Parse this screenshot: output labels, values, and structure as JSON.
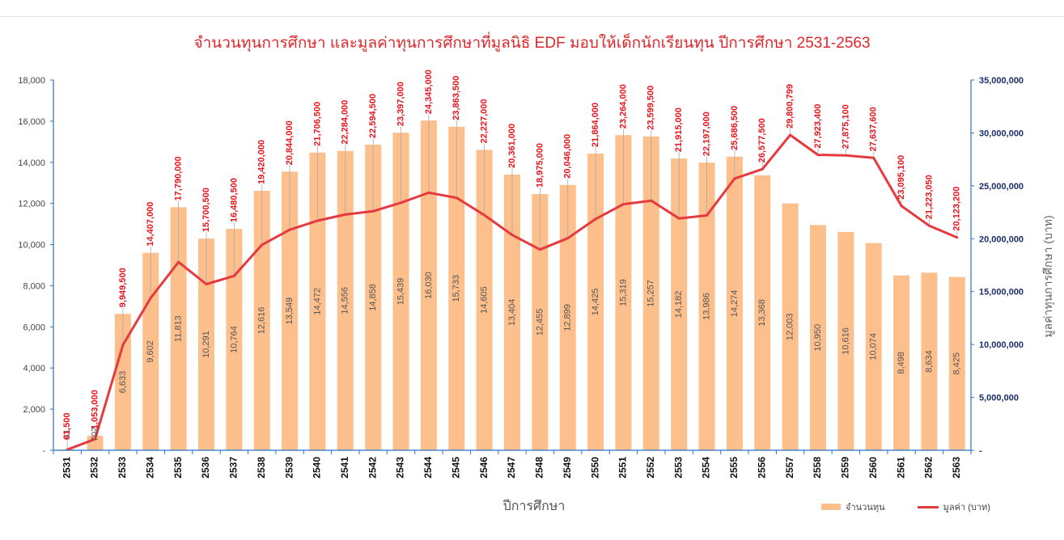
{
  "chart_data": {
    "type": "bar",
    "title": "จำนวนทุนการศึกษา และมูลค่าทุนการศึกษาที่มูลนิธิ EDF มอบให้เด็กนักเรียนทุน ปีการศึกษา 2531-2563",
    "xlabel": "ปีการศึกษา",
    "ylabel": "",
    "y2label": "มูลค่าทุนการศึกษา (บาท)",
    "ylim": [
      0,
      18000
    ],
    "y2lim": [
      0,
      35000000
    ],
    "y_ticks": [
      "-",
      "2,000",
      "4,000",
      "6,000",
      "8,000",
      "10,000",
      "12,000",
      "14,000",
      "16,000",
      "18,000"
    ],
    "y2_ticks": [
      "-",
      "5,000,000",
      "10,000,000",
      "15,000,000",
      "20,000,000",
      "25,000,000",
      "30,000,000",
      "35,000,000"
    ],
    "legend_position": "bottom-right",
    "grid": false,
    "categories": [
      "2531",
      "2532",
      "2533",
      "2534",
      "2535",
      "2536",
      "2537",
      "2538",
      "2539",
      "2540",
      "2541",
      "2542",
      "2543",
      "2544",
      "2545",
      "2546",
      "2547",
      "2548",
      "2549",
      "2550",
      "2551",
      "2552",
      "2553",
      "2554",
      "2555",
      "2556",
      "2557",
      "2558",
      "2559",
      "2560",
      "2561",
      "2562",
      "2563"
    ],
    "series": [
      {
        "name": "จำนวนทุน",
        "type": "bar",
        "axis": "left",
        "color": "#fdbf8c",
        "values": [
          41,
          702,
          6633,
          9602,
          11813,
          10291,
          10764,
          12616,
          13549,
          14472,
          14556,
          14858,
          15439,
          16030,
          15733,
          14605,
          13404,
          12455,
          12899,
          14425,
          15319,
          15257,
          14182,
          13986,
          14274,
          13368,
          12003,
          10950,
          10616,
          10074,
          8498,
          8634,
          8425
        ],
        "labels": [
          "41",
          "702",
          "6,633",
          "9,602",
          "11,813",
          "10,291",
          "10,764",
          "12,616",
          "13,549",
          "14,472",
          "14,556",
          "14,858",
          "15,439",
          "16,030",
          "15,733",
          "14,605",
          "13,404",
          "12,455",
          "12,899",
          "14,425",
          "15,319",
          "15,257",
          "14,182",
          "13,986",
          "14,274",
          "13,368",
          "12,003",
          "10,950",
          "10,616",
          "10,074",
          "8,498",
          "8,634",
          "8,425"
        ]
      },
      {
        "name": "มูลค่า (บาท)",
        "type": "line",
        "axis": "right",
        "color": "#e53a40",
        "values": [
          61500,
          1053000,
          9949500,
          14407000,
          17790000,
          15700500,
          16480500,
          19420000,
          20844000,
          21706500,
          22284000,
          22594500,
          23397000,
          24345000,
          23863500,
          22227000,
          20361000,
          18975000,
          20046000,
          21864000,
          23264000,
          23599500,
          21915000,
          22197000,
          25686500,
          26577500,
          29800799,
          27923400,
          27875100,
          27637600,
          23095100,
          21223050,
          20123200
        ],
        "labels": [
          "61,500",
          "1,053,000",
          "9,949,500",
          "14,407,000",
          "17,790,000",
          "15,700,500",
          "16,480,500",
          "19,420,000",
          "20,844,000",
          "21,706,500",
          "22,284,000",
          "22,594,500",
          "23,397,000",
          "24,345,000",
          "23,863,500",
          "22,227,000",
          "20,361,000",
          "18,975,000",
          "20,046,000",
          "21,864,000",
          "23,264,000",
          "23,599,500",
          "21,915,000",
          "22,197,000",
          "25,686,500",
          "26,577,500",
          "29,800,799",
          "27,923,400",
          "27,875,100",
          "27,637,600",
          "23,095,100",
          "21,223,050",
          "20,123,200"
        ]
      }
    ]
  }
}
